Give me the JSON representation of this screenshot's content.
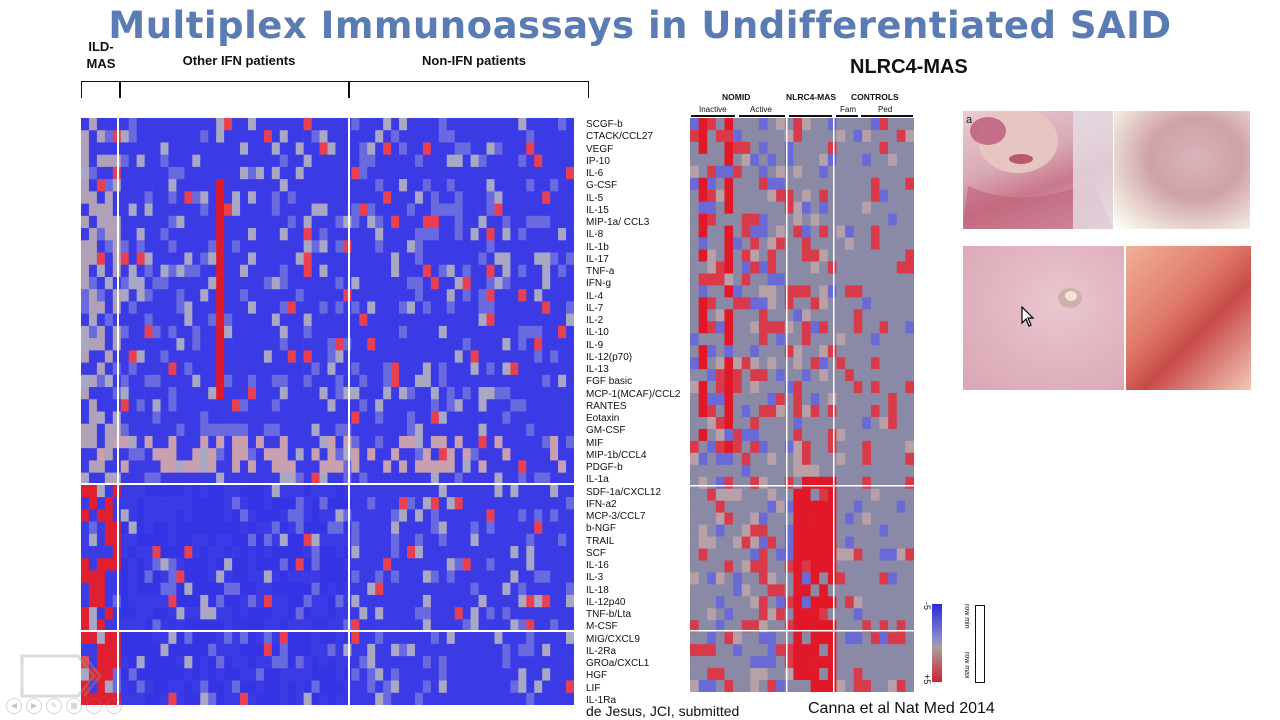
{
  "slide": {
    "title": "Multiplex Immunoassays in Undifferentiated SAID",
    "groups": [
      "ILD-\nMAS",
      "Other IFN patients",
      "Non-IFN patients"
    ],
    "caption_left": "de Jesus, JCI, submitted",
    "caption_right": "Canna et al Nat Med 2014"
  },
  "left_heatmap": {
    "rows": [
      "SCGF-b",
      "CTACK/CCL27",
      "VEGF",
      "IP-10",
      "IL-6",
      "G-CSF",
      "IL-5",
      "IL-15",
      "MIP-1a/ CCL3",
      "IL-8",
      "IL-1b",
      "IL-17",
      "TNF-a",
      "IFN-g",
      "IL-4",
      "IL-7",
      "IL-2",
      "IL-10",
      "IL-9",
      "IL-12(p70)",
      "IL-13",
      "FGF basic",
      "MCP-1(MCAF)/CCL2",
      "RANTES",
      "Eotaxin",
      "GM-CSF",
      "MIF",
      "MIP-1b/CCL4",
      "PDGF-b",
      "IL-1a",
      "SDF-1a/CXCL12",
      "IFN-a2",
      "MCP-3/CCL7",
      "b-NGF",
      "TRAIL",
      "SCF",
      "IL-16",
      "IL-3",
      "IL-18",
      "IL-12p40",
      "TNF-b/Lta",
      "M-CSF",
      "MIG/CXCL9",
      "IL-2Ra",
      "GROa/CXCL1",
      "HGF",
      "LIF",
      "IL-1Ra"
    ]
  },
  "right_panel": {
    "title": "NLRC4-MAS",
    "headers": [
      "NOMID",
      "NLRC4-MAS",
      "CONTROLS"
    ],
    "subheaders": [
      "Inactive",
      "Active",
      "Fam",
      "Ped"
    ],
    "legend": {
      "min": "-5",
      "max": "+5",
      "row_min": "row min",
      "row_max": "row max"
    }
  },
  "colors": {
    "title": "#5a7bb3",
    "blue": "#3a3ae0",
    "red": "#e01828",
    "grey": "#9a9aa8"
  }
}
